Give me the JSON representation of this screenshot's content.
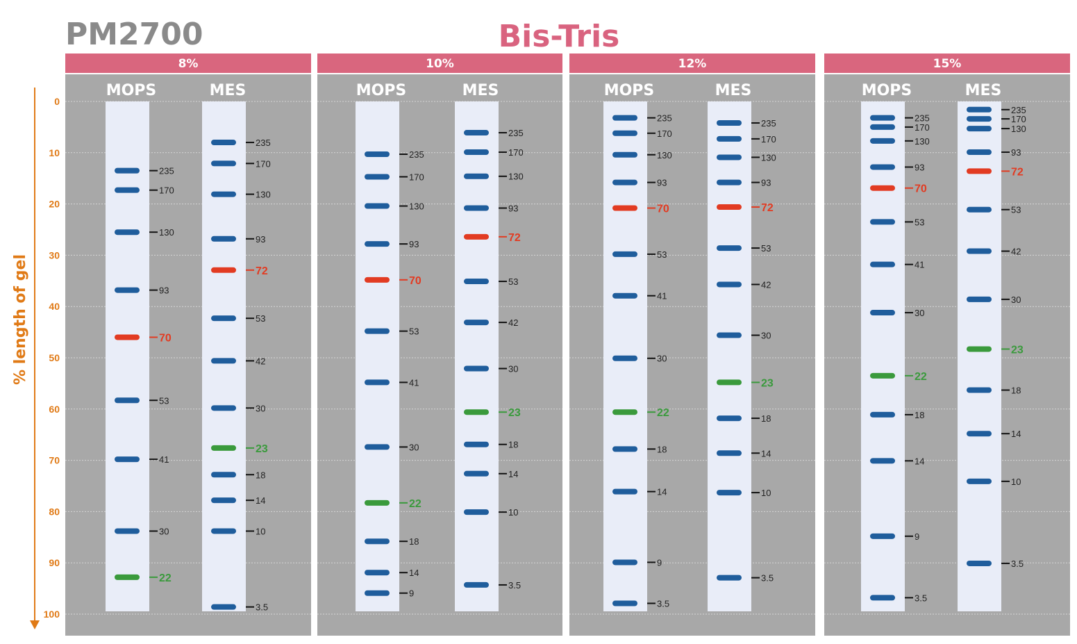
{
  "product": "PM2700",
  "title": "Bis-Tris",
  "colors": {
    "header": "#d9667e",
    "panel": "#a8a8a8",
    "lane": "#e9edf8",
    "band": "#1f5d9c",
    "red": "#e23b22",
    "green": "#3a9a3c",
    "axis": "#e07a16",
    "label": "#222222"
  },
  "chart_data": {
    "type": "gel-ladder",
    "ylabel": "% length of gel",
    "yticks": [
      "0",
      "10",
      "20",
      "30",
      "40",
      "50",
      "60",
      "70",
      "80",
      "90",
      "100"
    ],
    "ylim": [
      0,
      100
    ],
    "grid": true,
    "gels": [
      {
        "header": "8%",
        "lanes": [
          {
            "name": "MOPS",
            "bands": [
              {
                "label": "235",
                "y": 13.5,
                "color": "blue"
              },
              {
                "label": "170",
                "y": 17.3,
                "color": "blue"
              },
              {
                "label": "130",
                "y": 25.5,
                "color": "blue"
              },
              {
                "label": "93",
                "y": 36.8,
                "color": "blue"
              },
              {
                "label": "70",
                "y": 46,
                "color": "red"
              },
              {
                "label": "53",
                "y": 58.3,
                "color": "blue"
              },
              {
                "label": "41",
                "y": 69.8,
                "color": "blue"
              },
              {
                "label": "30",
                "y": 83.8,
                "color": "blue"
              },
              {
                "label": "22",
                "y": 92.8,
                "color": "green"
              }
            ]
          },
          {
            "name": "MES",
            "bands": [
              {
                "label": "235",
                "y": 8,
                "color": "blue"
              },
              {
                "label": "170",
                "y": 12.1,
                "color": "blue"
              },
              {
                "label": "130",
                "y": 18.1,
                "color": "blue"
              },
              {
                "label": "93",
                "y": 26.8,
                "color": "blue"
              },
              {
                "label": "72",
                "y": 32.9,
                "color": "red"
              },
              {
                "label": "53",
                "y": 42.3,
                "color": "blue"
              },
              {
                "label": "42",
                "y": 50.6,
                "color": "blue"
              },
              {
                "label": "30",
                "y": 59.8,
                "color": "blue"
              },
              {
                "label": "23",
                "y": 67.6,
                "color": "green"
              },
              {
                "label": "18",
                "y": 72.8,
                "color": "blue"
              },
              {
                "label": "14",
                "y": 77.8,
                "color": "blue"
              },
              {
                "label": "10",
                "y": 83.8,
                "color": "blue"
              },
              {
                "label": "3.5",
                "y": 98.6,
                "color": "blue"
              }
            ]
          }
        ]
      },
      {
        "header": "10%",
        "lanes": [
          {
            "name": "MOPS",
            "bands": [
              {
                "label": "235",
                "y": 10.3,
                "color": "blue"
              },
              {
                "label": "170",
                "y": 14.7,
                "color": "blue"
              },
              {
                "label": "130",
                "y": 20.4,
                "color": "blue"
              },
              {
                "label": "93",
                "y": 27.8,
                "color": "blue"
              },
              {
                "label": "70",
                "y": 34.8,
                "color": "red"
              },
              {
                "label": "53",
                "y": 44.8,
                "color": "blue"
              },
              {
                "label": "41",
                "y": 54.8,
                "color": "blue"
              },
              {
                "label": "30",
                "y": 67.4,
                "color": "blue"
              },
              {
                "label": "22",
                "y": 78.3,
                "color": "green"
              },
              {
                "label": "18",
                "y": 85.8,
                "color": "blue"
              },
              {
                "label": "14",
                "y": 91.9,
                "color": "blue"
              },
              {
                "label": "9",
                "y": 95.9,
                "color": "blue"
              }
            ]
          },
          {
            "name": "MES",
            "bands": [
              {
                "label": "235",
                "y": 6.1,
                "color": "blue"
              },
              {
                "label": "170",
                "y": 9.9,
                "color": "blue"
              },
              {
                "label": "130",
                "y": 14.6,
                "color": "blue"
              },
              {
                "label": "93",
                "y": 20.8,
                "color": "blue"
              },
              {
                "label": "72",
                "y": 26.4,
                "color": "red"
              },
              {
                "label": "53",
                "y": 35.1,
                "color": "blue"
              },
              {
                "label": "42",
                "y": 43.1,
                "color": "blue"
              },
              {
                "label": "30",
                "y": 52.1,
                "color": "blue"
              },
              {
                "label": "23",
                "y": 60.6,
                "color": "green"
              },
              {
                "label": "18",
                "y": 66.9,
                "color": "blue"
              },
              {
                "label": "14",
                "y": 72.6,
                "color": "blue"
              },
              {
                "label": "10",
                "y": 80.1,
                "color": "blue"
              },
              {
                "label": "3.5",
                "y": 94.3,
                "color": "blue"
              }
            ]
          }
        ]
      },
      {
        "header": "12%",
        "lanes": [
          {
            "name": "MOPS",
            "bands": [
              {
                "label": "235",
                "y": 3.2,
                "color": "blue"
              },
              {
                "label": "170",
                "y": 6.2,
                "color": "blue"
              },
              {
                "label": "130",
                "y": 10.4,
                "color": "blue"
              },
              {
                "label": "93",
                "y": 15.8,
                "color": "blue"
              },
              {
                "label": "70",
                "y": 20.8,
                "color": "red"
              },
              {
                "label": "53",
                "y": 29.8,
                "color": "blue"
              },
              {
                "label": "41",
                "y": 37.9,
                "color": "blue"
              },
              {
                "label": "30",
                "y": 50.1,
                "color": "blue"
              },
              {
                "label": "22",
                "y": 60.6,
                "color": "green"
              },
              {
                "label": "18",
                "y": 67.8,
                "color": "blue"
              },
              {
                "label": "14",
                "y": 76.1,
                "color": "blue"
              },
              {
                "label": "9",
                "y": 89.9,
                "color": "blue"
              },
              {
                "label": "3.5",
                "y": 97.9,
                "color": "blue"
              }
            ]
          },
          {
            "name": "MES",
            "bands": [
              {
                "label": "235",
                "y": 4.2,
                "color": "blue"
              },
              {
                "label": "170",
                "y": 7.3,
                "color": "blue"
              },
              {
                "label": "130",
                "y": 10.9,
                "color": "blue"
              },
              {
                "label": "93",
                "y": 15.8,
                "color": "blue"
              },
              {
                "label": "72",
                "y": 20.6,
                "color": "red"
              },
              {
                "label": "53",
                "y": 28.6,
                "color": "blue"
              },
              {
                "label": "42",
                "y": 35.7,
                "color": "blue"
              },
              {
                "label": "30",
                "y": 45.6,
                "color": "blue"
              },
              {
                "label": "23",
                "y": 54.8,
                "color": "green"
              },
              {
                "label": "18",
                "y": 61.8,
                "color": "blue"
              },
              {
                "label": "14",
                "y": 68.6,
                "color": "blue"
              },
              {
                "label": "10",
                "y": 76.3,
                "color": "blue"
              },
              {
                "label": "3.5",
                "y": 92.9,
                "color": "blue"
              }
            ]
          }
        ]
      },
      {
        "header": "15%",
        "lanes": [
          {
            "name": "MOPS",
            "bands": [
              {
                "label": "235",
                "y": 3.2,
                "color": "blue"
              },
              {
                "label": "170",
                "y": 5,
                "color": "blue"
              },
              {
                "label": "130",
                "y": 7.7,
                "color": "blue"
              },
              {
                "label": "93",
                "y": 12.8,
                "color": "blue"
              },
              {
                "label": "70",
                "y": 16.9,
                "color": "red"
              },
              {
                "label": "53",
                "y": 23.5,
                "color": "blue"
              },
              {
                "label": "41",
                "y": 31.8,
                "color": "blue"
              },
              {
                "label": "30",
                "y": 41.2,
                "color": "blue"
              },
              {
                "label": "22",
                "y": 53.5,
                "color": "green"
              },
              {
                "label": "18",
                "y": 61.1,
                "color": "blue"
              },
              {
                "label": "14",
                "y": 70.1,
                "color": "blue"
              },
              {
                "label": "9",
                "y": 84.8,
                "color": "blue"
              },
              {
                "label": "3.5",
                "y": 96.8,
                "color": "blue"
              }
            ]
          },
          {
            "name": "MES",
            "bands": [
              {
                "label": "235",
                "y": 1.6,
                "color": "blue"
              },
              {
                "label": "170",
                "y": 3.4,
                "color": "blue"
              },
              {
                "label": "130",
                "y": 5.3,
                "color": "blue"
              },
              {
                "label": "93",
                "y": 9.9,
                "color": "blue"
              },
              {
                "label": "72",
                "y": 13.6,
                "color": "red"
              },
              {
                "label": "53",
                "y": 21.1,
                "color": "blue"
              },
              {
                "label": "42",
                "y": 29.2,
                "color": "blue"
              },
              {
                "label": "30",
                "y": 38.6,
                "color": "blue"
              },
              {
                "label": "23",
                "y": 48.3,
                "color": "green"
              },
              {
                "label": "18",
                "y": 56.3,
                "color": "blue"
              },
              {
                "label": "14",
                "y": 64.8,
                "color": "blue"
              },
              {
                "label": "10",
                "y": 74.1,
                "color": "blue"
              },
              {
                "label": "3.5",
                "y": 90.1,
                "color": "blue"
              }
            ]
          }
        ]
      }
    ]
  }
}
